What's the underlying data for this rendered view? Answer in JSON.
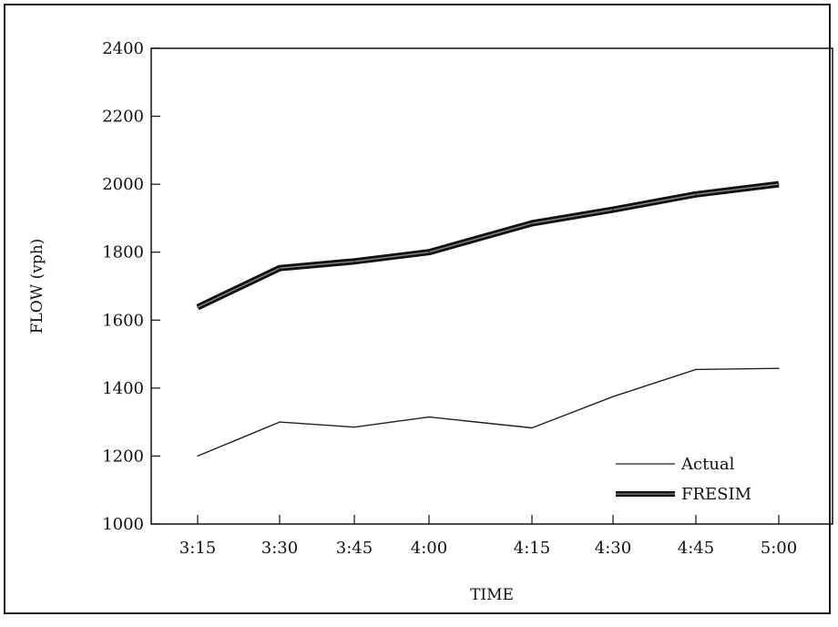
{
  "chart_data": {
    "type": "line",
    "title": "",
    "xlabel": "TIME",
    "ylabel": "FLOW (vph)",
    "categories": [
      "3:15",
      "3:30",
      "3:45",
      "4:00",
      "4:15",
      "4:30",
      "4:45",
      "5:00"
    ],
    "ylim": [
      1000,
      2400
    ],
    "yticks": [
      "1000",
      "1200",
      "1400",
      "1600",
      "1800",
      "2000",
      "2200",
      "2400"
    ],
    "grid": false,
    "legend_position": "bottom-right",
    "series": [
      {
        "name": "Actual",
        "style": "thin",
        "color": "#222222",
        "values": [
          1200,
          1300,
          1285,
          1315,
          1283,
          1375,
          1455,
          1458
        ]
      },
      {
        "name": "FRESIM",
        "style": "thick",
        "color": "#111111",
        "values": [
          1638,
          1753,
          1773,
          1800,
          1885,
          1925,
          1970,
          2000
        ]
      }
    ]
  }
}
